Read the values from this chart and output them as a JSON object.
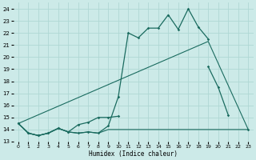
{
  "xlabel": "Humidex (Indice chaleur)",
  "bg_color": "#cceae8",
  "grid_color": "#b0d8d4",
  "line_color": "#1a6b5f",
  "ylim": [
    13,
    24.5
  ],
  "xlim": [
    -0.5,
    23.5
  ],
  "yticks": [
    13,
    14,
    15,
    16,
    17,
    18,
    19,
    20,
    21,
    22,
    23,
    24
  ],
  "xticks": [
    0,
    1,
    2,
    3,
    4,
    5,
    6,
    7,
    8,
    9,
    10,
    11,
    12,
    13,
    14,
    15,
    16,
    17,
    18,
    19,
    20,
    21,
    22,
    23
  ],
  "series": [
    {
      "x": [
        0,
        1,
        2,
        3,
        4,
        5,
        6,
        7,
        8,
        9,
        10,
        11,
        12,
        13,
        14,
        15,
        16,
        17,
        18,
        19,
        20,
        21,
        22,
        23
      ],
      "y": [
        14.5,
        13.7,
        13.5,
        13.7,
        14.1,
        13.8,
        13.7,
        13.8,
        13.7,
        14.0,
        14.0,
        14.0,
        14.0,
        14.0,
        14.0,
        14.0,
        14.0,
        14.0,
        14.0,
        14.0,
        14.0,
        14.0,
        14.0,
        14.0
      ],
      "marker": false,
      "lw": 0.8
    },
    {
      "x": [
        0,
        1,
        2,
        3,
        4,
        5,
        6,
        7,
        8,
        9,
        10,
        11,
        12,
        13,
        14,
        15,
        16,
        17,
        18,
        19,
        20,
        21,
        22,
        23
      ],
      "y": [
        14.5,
        13.7,
        13.5,
        13.7,
        14.1,
        13.8,
        13.7,
        13.8,
        13.7,
        14.3,
        16.7,
        22.0,
        21.6,
        22.4,
        22.4,
        23.5,
        22.3,
        24.0,
        22.5,
        21.5,
        null,
        null,
        null,
        null
      ],
      "marker": true,
      "lw": 0.9
    },
    {
      "x": [
        0,
        1,
        2,
        3,
        4,
        5,
        6,
        7,
        8,
        9,
        10,
        11,
        12,
        13,
        14,
        15,
        16,
        17,
        18,
        19,
        20,
        21,
        22,
        23
      ],
      "y": [
        14.5,
        13.7,
        13.5,
        13.7,
        14.1,
        13.8,
        14.4,
        14.6,
        15.0,
        15.0,
        15.1,
        null,
        null,
        null,
        null,
        null,
        null,
        null,
        null,
        19.2,
        17.5,
        15.2,
        null,
        14.0
      ],
      "marker": true,
      "lw": 0.9
    },
    {
      "x": [
        0,
        19,
        23
      ],
      "y": [
        14.5,
        21.3,
        14.0
      ],
      "marker": false,
      "lw": 0.8
    }
  ]
}
